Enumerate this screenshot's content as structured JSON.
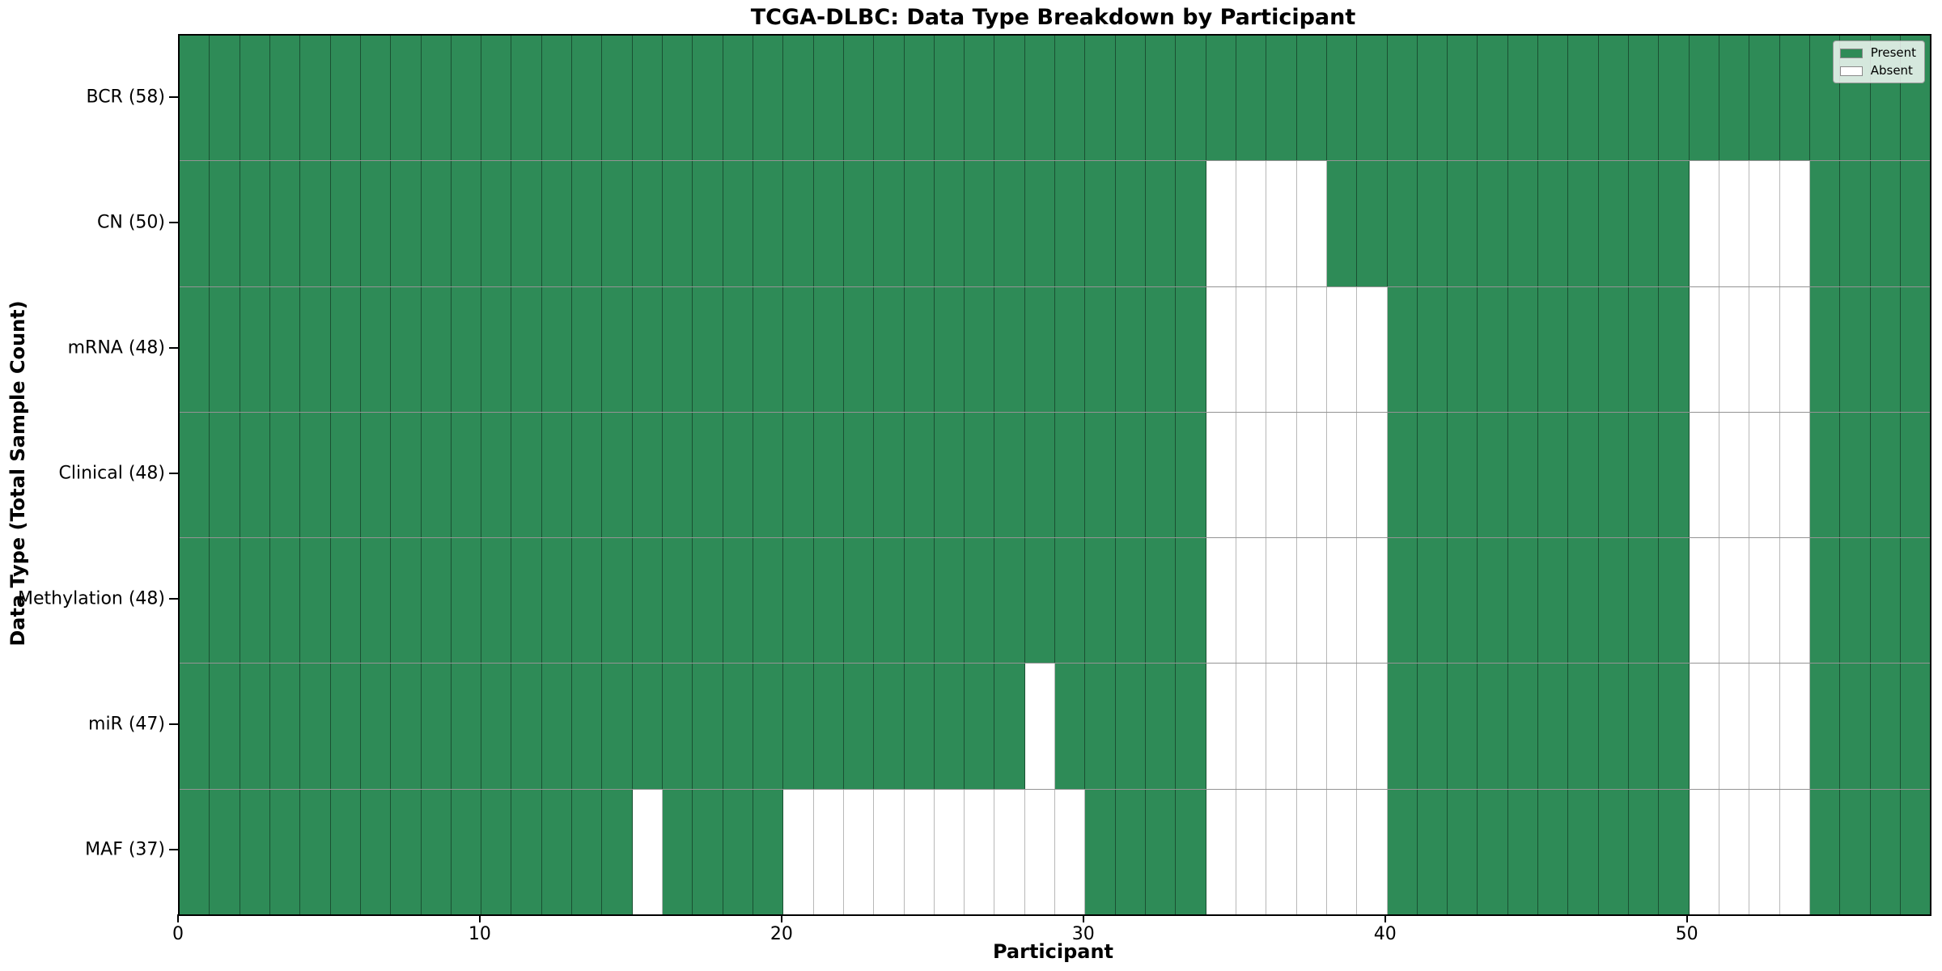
{
  "chart_data": {
    "type": "heatmap",
    "title": "TCGA-DLBC: Data Type Breakdown by Participant",
    "xlabel": "Participant",
    "ylabel": "Data Type (Total Sample Count)",
    "n_participants": 58,
    "xlim": [
      0,
      58
    ],
    "x_ticks": [
      0,
      10,
      20,
      30,
      40,
      50
    ],
    "grid": "cell-borders",
    "legend_position": "upper-right",
    "colors": {
      "present": "#2e8b57",
      "absent": "#ffffff",
      "grid_line": "rgba(0,0,0,0.42)",
      "frame": "#000000"
    },
    "legend": {
      "items": [
        {
          "label": "Present",
          "color": "#2e8b57"
        },
        {
          "label": "Absent",
          "color": "#ffffff"
        }
      ]
    },
    "rows": [
      {
        "label": "BCR (58)",
        "data_type": "BCR",
        "total_samples": 58,
        "absent_participants": []
      },
      {
        "label": "CN (50)",
        "data_type": "CN",
        "total_samples": 50,
        "absent_participants": [
          34,
          35,
          36,
          37,
          50,
          51,
          52,
          53
        ]
      },
      {
        "label": "mRNA (48)",
        "data_type": "mRNA",
        "total_samples": 48,
        "absent_participants": [
          34,
          35,
          36,
          37,
          38,
          39,
          50,
          51,
          52,
          53
        ]
      },
      {
        "label": "Clinical (48)",
        "data_type": "Clinical",
        "total_samples": 48,
        "absent_participants": [
          34,
          35,
          36,
          37,
          38,
          39,
          50,
          51,
          52,
          53
        ]
      },
      {
        "label": "Methylation (48)",
        "data_type": "Methylation",
        "total_samples": 48,
        "absent_participants": [
          34,
          35,
          36,
          37,
          38,
          39,
          50,
          51,
          52,
          53
        ]
      },
      {
        "label": "miR (47)",
        "data_type": "miR",
        "total_samples": 47,
        "absent_participants": [
          28,
          34,
          35,
          36,
          37,
          38,
          39,
          50,
          51,
          52,
          53
        ]
      },
      {
        "label": "MAF (37)",
        "data_type": "MAF",
        "total_samples": 37,
        "absent_participants": [
          15,
          20,
          21,
          22,
          23,
          24,
          25,
          26,
          27,
          28,
          29,
          34,
          35,
          36,
          37,
          38,
          39,
          50,
          51,
          52,
          53
        ]
      }
    ]
  }
}
